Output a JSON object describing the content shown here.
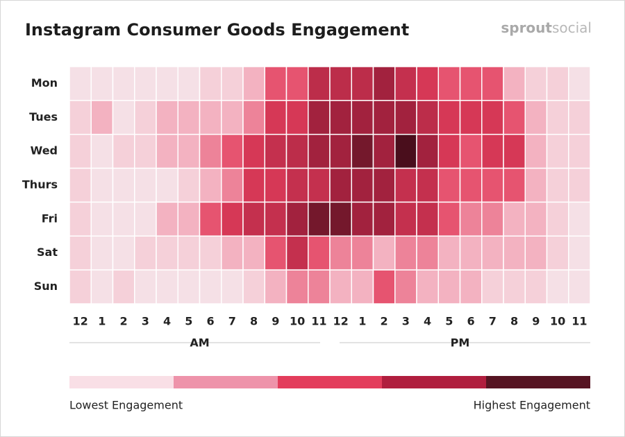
{
  "chart_data": {
    "type": "heatmap",
    "title": "Instagram Consumer Goods Engagement",
    "brand": [
      "sprout",
      "social"
    ],
    "categories": [
      "12",
      "1",
      "2",
      "3",
      "4",
      "5",
      "6",
      "7",
      "8",
      "9",
      "10",
      "11",
      "12",
      "1",
      "2",
      "3",
      "4",
      "5",
      "6",
      "7",
      "8",
      "9",
      "10",
      "11"
    ],
    "groups": [
      "AM",
      "PM"
    ],
    "rows": [
      "Mon",
      "Tues",
      "Wed",
      "Thurs",
      "Fri",
      "Sat",
      "Sun"
    ],
    "values": [
      [
        5,
        5,
        5,
        5,
        5,
        5,
        12,
        12,
        25,
        45,
        45,
        65,
        65,
        65,
        75,
        62,
        55,
        45,
        45,
        45,
        25,
        12,
        12,
        5
      ],
      [
        12,
        25,
        5,
        12,
        25,
        25,
        25,
        25,
        35,
        55,
        55,
        75,
        75,
        75,
        75,
        75,
        65,
        55,
        55,
        55,
        45,
        25,
        12,
        12
      ],
      [
        12,
        5,
        12,
        12,
        25,
        25,
        35,
        45,
        55,
        62,
        65,
        75,
        75,
        88,
        75,
        100,
        75,
        55,
        45,
        55,
        55,
        25,
        12,
        12
      ],
      [
        12,
        5,
        5,
        5,
        5,
        12,
        25,
        35,
        55,
        55,
        62,
        62,
        75,
        75,
        75,
        62,
        62,
        45,
        45,
        45,
        45,
        25,
        12,
        12
      ],
      [
        12,
        5,
        5,
        5,
        25,
        25,
        45,
        55,
        62,
        62,
        75,
        88,
        88,
        75,
        75,
        62,
        62,
        45,
        35,
        35,
        25,
        25,
        12,
        5
      ],
      [
        12,
        5,
        5,
        12,
        12,
        12,
        12,
        25,
        25,
        45,
        62,
        45,
        35,
        35,
        25,
        35,
        35,
        25,
        25,
        25,
        25,
        25,
        12,
        5
      ],
      [
        12,
        5,
        12,
        5,
        5,
        5,
        5,
        5,
        12,
        25,
        35,
        35,
        25,
        25,
        45,
        35,
        25,
        25,
        25,
        12,
        12,
        12,
        5,
        5
      ]
    ],
    "zlim": [
      0,
      100
    ],
    "colorscale": [
      "#f6ecef",
      "#f3b2c1",
      "#e33d5c",
      "#a2223e",
      "#4a0e1c"
    ],
    "legend_colors": [
      "#f9dfe6",
      "#ee93aa",
      "#e33d5c",
      "#b01e3e",
      "#561422"
    ],
    "legend_labels": [
      "Lowest Engagement",
      "Highest Engagement"
    ]
  }
}
